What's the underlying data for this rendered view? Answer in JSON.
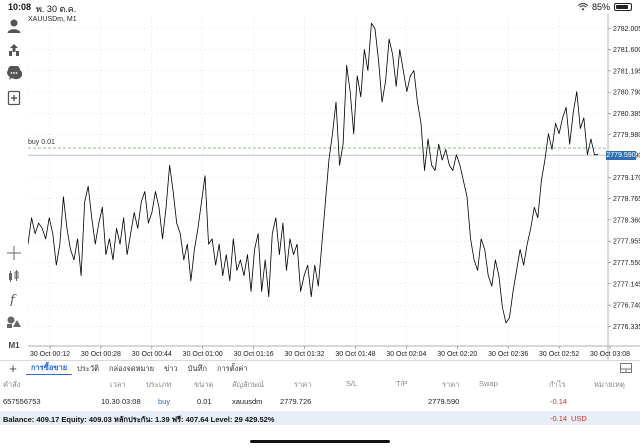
{
  "status": {
    "time": "10:08",
    "date": "พ. 30 ต.ค.",
    "battery_text": "85%",
    "battery_level": 0.85
  },
  "chart": {
    "symbol": "XAUUSDm, M1",
    "order_label": "buy 0.01",
    "current_price": "2779.590",
    "colors": {
      "line": "#000000",
      "order_line": "#7fbf7f",
      "bid_line": "#b0b8c8",
      "price_tag": "#2f6fb3",
      "grid": "#c8c8c8"
    }
  },
  "chart_data": {
    "type": "line",
    "title": "XAUUSDm, M1",
    "xlabel": "",
    "ylabel": "",
    "ylim": [
      2776.0,
      2782.2
    ],
    "x_ticks": [
      "30 Oct 00:12",
      "30 Oct 00:28",
      "30 Oct 00:44",
      "30 Oct 01:00",
      "30 Oct 01:16",
      "30 Oct 01:32",
      "30 Oct 01:48",
      "30 Oct 02:04",
      "30 Oct 02:20",
      "30 Oct 02:36",
      "30 Oct 02:52",
      "30 Oct 03:08"
    ],
    "y_ticks": [
      "2782.005",
      "2781.600",
      "2781.195",
      "2780.790",
      "2780.385",
      "2779.980",
      "2779.590",
      "2779.170",
      "2778.765",
      "2778.360",
      "2777.955",
      "2777.550",
      "2777.145",
      "2776.740",
      "2776.335"
    ],
    "series": [
      {
        "values": [
          2777.9,
          2778.4,
          2778.1,
          2778.3,
          2778.2,
          2778.0,
          2778.4,
          2778.1,
          2777.5,
          2777.9,
          2778.8,
          2778.2,
          2777.8,
          2777.6,
          2778.0,
          2777.3,
          2778.7,
          2779.0,
          2778.4,
          2777.9,
          2778.3,
          2778.6,
          2777.7,
          2778.0,
          2777.6,
          2778.2,
          2777.9,
          2778.4,
          2777.7,
          2778.1,
          2778.5,
          2778.2,
          2778.7,
          2778.9,
          2778.3,
          2778.5,
          2778.9,
          2778.6,
          2778.0,
          2778.6,
          2779.4,
          2778.9,
          2778.3,
          2778.1,
          2777.6,
          2777.9,
          2777.2,
          2777.8,
          2778.2,
          2778.7,
          2779.2,
          2777.9,
          2778.0,
          2777.5,
          2777.9,
          2777.3,
          2777.7,
          2777.2,
          2778.0,
          2777.4,
          2777.6,
          2777.3,
          2777.7,
          2777.0,
          2777.8,
          2778.1,
          2777.0,
          2777.6,
          2776.9,
          2778.1,
          2778.4,
          2777.7,
          2778.3,
          2777.4,
          2778.0,
          2777.7,
          2777.9,
          2777.0,
          2777.3,
          2777.5,
          2776.9,
          2777.5,
          2777.1,
          2777.9,
          2778.7,
          2779.5,
          2780.0,
          2780.6,
          2779.4,
          2779.8,
          2781.3,
          2780.8,
          2780.0,
          2781.1,
          2780.7,
          2781.6,
          2781.2,
          2782.1,
          2782.0,
          2781.4,
          2780.6,
          2781.0,
          2781.8,
          2781.5,
          2780.9,
          2781.6,
          2781.2,
          2780.8,
          2781.1,
          2781.2,
          2780.6,
          2780.2,
          2779.3,
          2779.9,
          2779.4,
          2779.3,
          2779.8,
          2779.5,
          2779.7,
          2779.4,
          2779.3,
          2779.6,
          2779.4,
          2779.1,
          2778.8,
          2778.0,
          2777.6,
          2777.4,
          2778.0,
          2777.8,
          2777.3,
          2777.1,
          2777.6,
          2777.3,
          2776.7,
          2776.4,
          2776.5,
          2777.0,
          2777.4,
          2777.8,
          2777.5,
          2777.9,
          2778.2,
          2778.6,
          2778.4,
          2779.1,
          2779.5,
          2780.0,
          2779.7,
          2780.2,
          2780.0,
          2780.3,
          2780.5,
          2779.8,
          2780.4,
          2780.8,
          2780.1,
          2780.3,
          2779.6,
          2779.9,
          2779.6,
          2779.6
        ]
      }
    ],
    "order_level": 2779.726,
    "bid_level": 2779.59
  },
  "tabs": {
    "items": [
      "การซื้อขาย",
      "ประวัติ",
      "กล่องจดหมาย",
      "ข่าว",
      "บันทึก",
      "การตั้งค่า"
    ],
    "active_index": 0
  },
  "table": {
    "headers": [
      "คำสั่ง",
      "เวลา",
      "ประเภท",
      "ขนาด",
      "สัญลักษณ์",
      "ราคา",
      "S/L",
      "T/P",
      "ราคา",
      "Swap",
      "กำไร",
      "หมายเหตุ"
    ],
    "rows": [
      [
        "657556753",
        "10.30 03:08",
        "buy",
        "0.01",
        "xauusdm",
        "2779.726",
        "",
        "",
        "2779.590",
        "",
        "-0.14",
        ""
      ]
    ]
  },
  "account": {
    "summary": "Balance: 409.17 Equity: 409.03 หลักประกัน: 1.39 ฟรี: 407.64 Level: 29 429.52%",
    "profit": "-0.14",
    "currency": "USD"
  }
}
